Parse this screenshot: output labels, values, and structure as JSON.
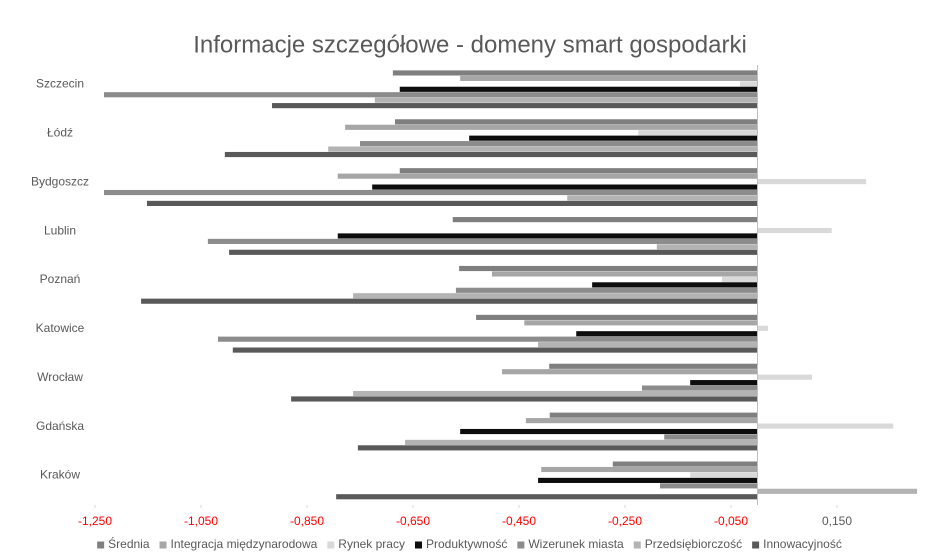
{
  "chart_data": {
    "type": "hbar",
    "title": "Informacje szczegółowe - domeny smart gospodarki",
    "categories": [
      "Szczecin",
      "Łódź",
      "Bydgoszcz",
      "Lublin",
      "Poznań",
      "Katowice",
      "Wrocław",
      "Gdańska",
      "Kraków"
    ],
    "series": [
      {
        "name": "Średnia",
        "color": "#7f7f7f",
        "values": [
          -0.688,
          -0.684,
          -0.675,
          -0.575,
          -0.563,
          -0.531,
          -0.393,
          -0.392,
          -0.273
        ]
      },
      {
        "name": "Integracja międzynarodowa",
        "color": "#a6a6a6",
        "values": [
          -0.561,
          -0.778,
          -0.792,
          0,
          -0.501,
          -0.44,
          -0.482,
          -0.437,
          -0.408
        ]
      },
      {
        "name": "Rynek pracy",
        "color": "#d9d9d9",
        "values": [
          -0.033,
          -0.225,
          0.205,
          0.14,
          -0.067,
          0.02,
          0.103,
          0.256,
          -0.127
        ]
      },
      {
        "name": "Produktywność",
        "color": "#0d0d0d",
        "values": [
          -0.675,
          -0.544,
          -0.727,
          -0.792,
          -0.312,
          -0.342,
          -0.127,
          -0.561,
          -0.414
        ]
      },
      {
        "name": "Wizerunek miasta",
        "color": "#8c8c8c",
        "values": [
          -1.233,
          -0.75,
          -1.233,
          -1.037,
          -0.569,
          -1.018,
          -0.218,
          -0.176,
          -0.184
        ]
      },
      {
        "name": "Przedsiębiorczość",
        "color": "#b3b3b3",
        "values": [
          -0.722,
          -0.81,
          -0.359,
          -0.19,
          -0.763,
          -0.414,
          -0.763,
          -0.665,
          0.301
        ]
      },
      {
        "name": "Innowacyjność",
        "color": "#595959",
        "values": [
          -0.916,
          -1.005,
          -1.152,
          -0.997,
          -1.163,
          -0.99,
          -0.88,
          -0.754,
          -0.795
        ]
      }
    ],
    "xlim": [
      -1.25,
      0.3
    ],
    "xticks": [
      {
        "value": -1.25,
        "label": "-1,250"
      },
      {
        "value": -1.05,
        "label": "-1,050"
      },
      {
        "value": -0.85,
        "label": "-0,850"
      },
      {
        "value": -0.65,
        "label": "-0,650"
      },
      {
        "value": -0.45,
        "label": "-0,450"
      },
      {
        "value": -0.25,
        "label": "-0,250"
      },
      {
        "value": -0.05,
        "label": "-0,050"
      },
      {
        "value": 0.15,
        "label": "0,150"
      }
    ],
    "negative_tick_color": "#ff0000",
    "legend": "bottom"
  }
}
